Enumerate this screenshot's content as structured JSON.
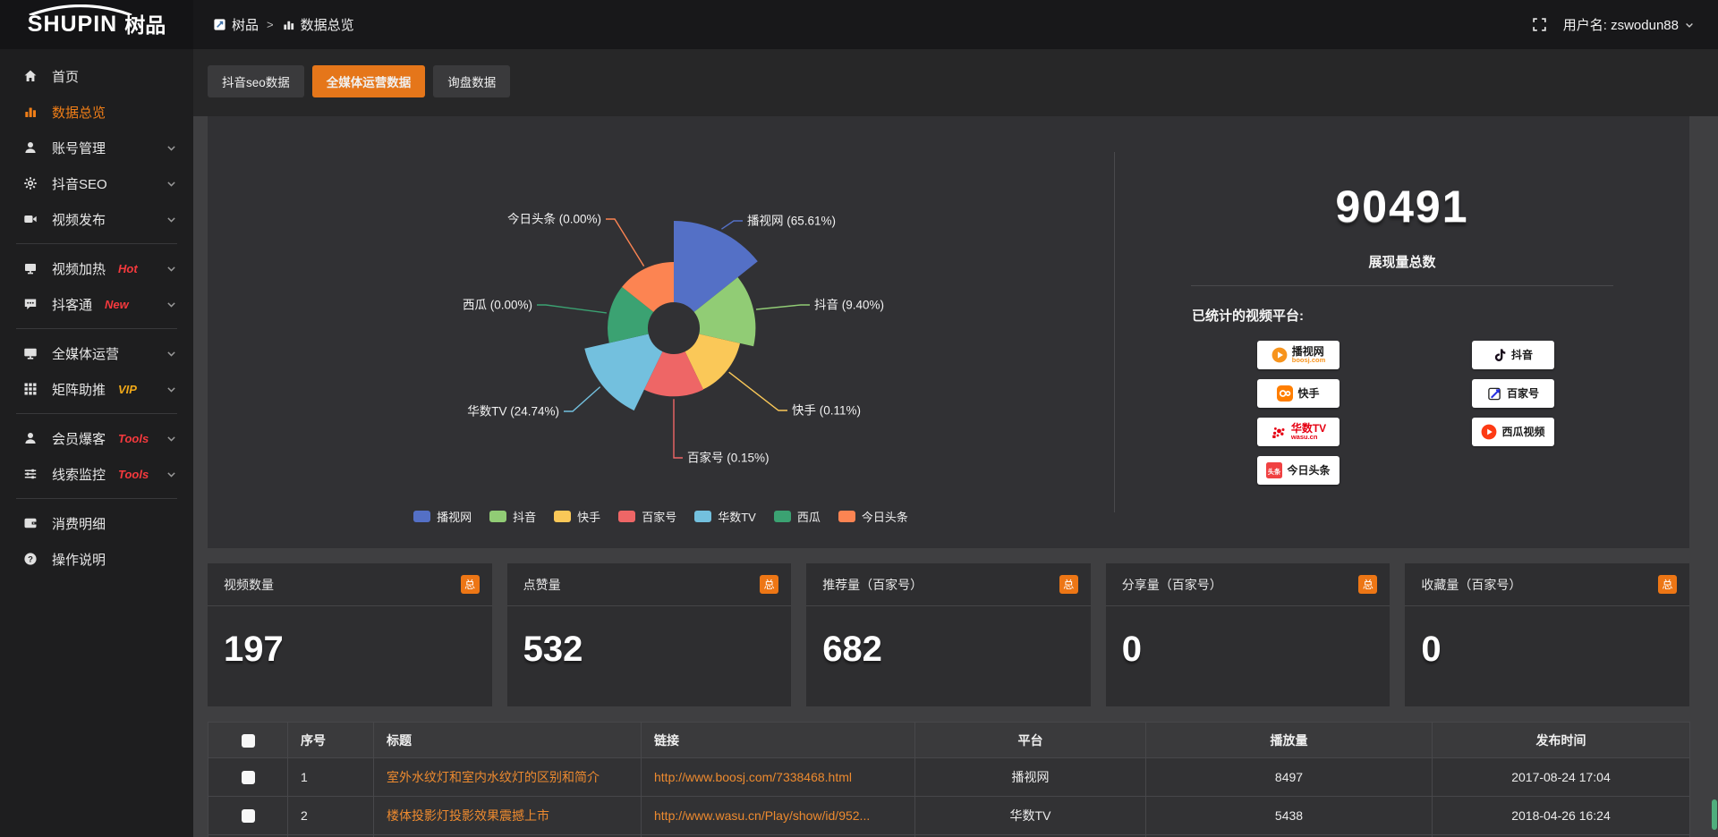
{
  "header": {
    "logo_en": "SHUPIN",
    "logo_cn": "树品",
    "breadcrumb": {
      "root": "树品",
      "separator": ">",
      "current": "数据总览"
    },
    "user_label": "用户名: zswodun88"
  },
  "sidebar": {
    "items": [
      {
        "label": "首页",
        "icon": "home"
      },
      {
        "label": "数据总览",
        "icon": "bar-chart",
        "active": true
      },
      {
        "label": "账号管理",
        "icon": "user",
        "chevron": true
      },
      {
        "label": "抖音SEO",
        "icon": "gear",
        "chevron": true
      },
      {
        "label": "视频发布",
        "icon": "video",
        "chevron": true,
        "divider_after": true
      },
      {
        "label": "视频加热",
        "icon": "heat",
        "badge": "Hot",
        "badge_color": "red",
        "chevron": true
      },
      {
        "label": "抖客通",
        "icon": "chat",
        "badge": "New",
        "badge_color": "red",
        "chevron": true,
        "divider_after": true
      },
      {
        "label": "全媒体运营",
        "icon": "monitor",
        "chevron": true
      },
      {
        "label": "矩阵助推",
        "icon": "grid",
        "badge": "VIP",
        "badge_color": "gold",
        "chevron": true,
        "divider_after": true
      },
      {
        "label": "会员爆客",
        "icon": "user",
        "badge": "Tools",
        "badge_color": "red",
        "chevron": true
      },
      {
        "label": "线索监控",
        "icon": "sliders",
        "badge": "Tools",
        "badge_color": "red",
        "chevron": true,
        "divider_after": true
      },
      {
        "label": "消费明细",
        "icon": "wallet"
      },
      {
        "label": "操作说明",
        "icon": "question"
      }
    ]
  },
  "tabs": [
    {
      "label": "抖音seo数据"
    },
    {
      "label": "全媒体运营数据",
      "active": true
    },
    {
      "label": "询盘数据"
    }
  ],
  "chart_data": {
    "type": "pie",
    "subtype": "nightingale-rose",
    "label_format": "{name} ({pct}%)",
    "legend_position": "bottom",
    "slices": [
      {
        "name": "播视网",
        "pct": 65.61,
        "color": "#5470c6"
      },
      {
        "name": "抖音",
        "pct": 9.4,
        "color": "#91cc75"
      },
      {
        "name": "快手",
        "pct": 0.11,
        "color": "#fac858"
      },
      {
        "name": "百家号",
        "pct": 0.15,
        "color": "#ee6666"
      },
      {
        "name": "华数TV",
        "pct": 24.74,
        "color": "#73c0de"
      },
      {
        "name": "西瓜",
        "pct": 0.0,
        "color": "#3ba272"
      },
      {
        "name": "今日头条",
        "pct": 0.0,
        "color": "#fc8452"
      }
    ]
  },
  "summary": {
    "total_value": "90491",
    "total_caption": "展现量总数",
    "platforms_label": "已统计的视频平台:",
    "platform_columns": [
      [
        {
          "name": "播视网",
          "sub": "boosj.com",
          "icon": "boosj"
        },
        {
          "name": "快手",
          "icon": "kuaishou"
        },
        {
          "name": "华数TV",
          "sub": "wasu.cn",
          "icon": "wasu",
          "name_color": "red"
        },
        {
          "name": "今日头条",
          "icon": "toutiao"
        }
      ],
      [
        {
          "name": "抖音",
          "icon": "douyin"
        },
        {
          "name": "百家号",
          "icon": "baijiahao"
        },
        {
          "name": "西瓜视频",
          "icon": "xigua"
        }
      ]
    ]
  },
  "cards": [
    {
      "title": "视频数量",
      "badge": "总",
      "value": "197"
    },
    {
      "title": "点赞量",
      "badge": "总",
      "value": "532"
    },
    {
      "title": "推荐量（百家号）",
      "badge": "总",
      "value": "682"
    },
    {
      "title": "分享量（百家号）",
      "badge": "总",
      "value": "0"
    },
    {
      "title": "收藏量（百家号）",
      "badge": "总",
      "value": "0"
    }
  ],
  "table": {
    "columns": [
      "序号",
      "标题",
      "链接",
      "平台",
      "播放量",
      "发布时间"
    ],
    "rows": [
      {
        "no": "1",
        "title": "室外水纹灯和室内水纹灯的区别和简介",
        "link": "http://www.boosj.com/7338468.html",
        "platform": "播视网",
        "plays": "8497",
        "time": "2017-08-24 17:04"
      },
      {
        "no": "2",
        "title": "楼体投影灯投影效果震撼上市",
        "link": "http://www.wasu.cn/Play/show/id/952...",
        "platform": "华数TV",
        "plays": "5438",
        "time": "2018-04-26 16:24"
      }
    ]
  },
  "colors": {
    "accent": "#e5761a",
    "link": "#ed8a2f",
    "hot_red": "#f5393d",
    "vip_gold": "#f0a818"
  }
}
